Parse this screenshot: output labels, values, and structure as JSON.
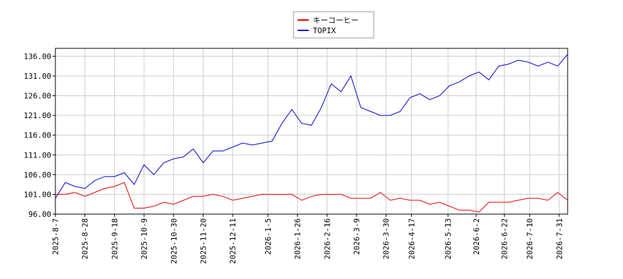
{
  "chart_data": {
    "type": "line",
    "x": [
      "2025-8-7",
      "2025-8-14",
      "2025-8-21",
      "2025-8-28",
      "2025-9-4",
      "2025-9-11",
      "2025-9-18",
      "2025-9-25",
      "2025-10-2",
      "2025-10-9",
      "2025-10-16",
      "2025-10-23",
      "2025-10-30",
      "2025-11-6",
      "2025-11-13",
      "2025-11-20",
      "2025-11-27",
      "2025-12-4",
      "2025-12-11",
      "2025-12-18",
      "2025-12-25",
      "2026-1-1",
      "2026-1-8",
      "2026-1-15",
      "2026-1-22",
      "2026-1-29",
      "2026-2-5",
      "2026-2-12",
      "2026-2-19",
      "2026-2-26",
      "2026-3-5",
      "2026-3-12",
      "2026-3-19",
      "2026-3-26",
      "2026-4-2",
      "2026-4-9",
      "2026-4-16",
      "2026-4-23",
      "2026-4-30",
      "2026-5-7",
      "2026-5-14",
      "2026-5-21",
      "2026-5-28",
      "2026-6-4",
      "2026-6-11",
      "2026-6-18",
      "2026-6-25",
      "2026-7-2",
      "2026-7-9",
      "2026-7-16",
      "2026-7-23",
      "2026-7-30",
      "2026-8-6"
    ],
    "series": [
      {
        "name": "キーコーヒー",
        "color": "#dd0000",
        "values": [
          101,
          101,
          101.5,
          100.5,
          101.5,
          102.5,
          103,
          104,
          97.5,
          97.5,
          98,
          99,
          98.5,
          99.5,
          100.5,
          100.5,
          101,
          100.5,
          99.5,
          100,
          100.5,
          101,
          101,
          101,
          101,
          99.5,
          100.5,
          101,
          101,
          101,
          100,
          100,
          100,
          101.5,
          99.5,
          100,
          99.5,
          99.5,
          98.5,
          99,
          98,
          97,
          97,
          96.5,
          99,
          99,
          99,
          99.5,
          100,
          100,
          99.5,
          101.5,
          99.5
        ]
      },
      {
        "name": "TOPIX",
        "color": "#0000cc",
        "values": [
          100,
          104,
          103,
          102.5,
          104.5,
          105.5,
          105.5,
          106.5,
          103.5,
          108.5,
          106,
          109,
          110,
          110.5,
          112.5,
          109,
          112,
          112,
          113,
          114,
          113.5,
          114,
          114.5,
          119,
          122.5,
          119,
          118.5,
          123,
          129,
          127,
          131,
          123,
          122,
          121,
          121,
          122,
          125.5,
          126.5,
          125,
          126,
          128.5,
          129.5,
          131,
          132,
          130,
          133.5,
          134,
          135,
          134.5,
          133.5,
          134.5,
          133.5,
          136.5
        ]
      }
    ],
    "xlim": [
      "2025-8-7",
      "2026-8-6"
    ],
    "xticks": [
      "2025-8-7",
      "2025-8-28",
      "2025-9-18",
      "2025-10-9",
      "2025-10-30",
      "2025-11-20",
      "2025-12-11",
      "2026-1-5",
      "2026-1-26",
      "2026-2-16",
      "2026-3-9",
      "2026-3-30",
      "2026-4-17",
      "2026-5-13",
      "2026-6-2",
      "2026-6-22",
      "2026-7-10",
      "2026-7-31"
    ],
    "ylim": [
      96,
      138
    ],
    "yticks": [
      {
        "value": 96,
        "label": "96.00"
      },
      {
        "value": 101,
        "label": "101.00"
      },
      {
        "value": 106,
        "label": "106.00"
      },
      {
        "value": 111,
        "label": "111.00"
      },
      {
        "value": 116,
        "label": "116.00"
      },
      {
        "value": 121,
        "label": "121.00"
      },
      {
        "value": 126,
        "label": "126.00"
      },
      {
        "value": 131,
        "label": "131.00"
      },
      {
        "value": 136,
        "label": "136.00"
      }
    ],
    "grid": true
  }
}
